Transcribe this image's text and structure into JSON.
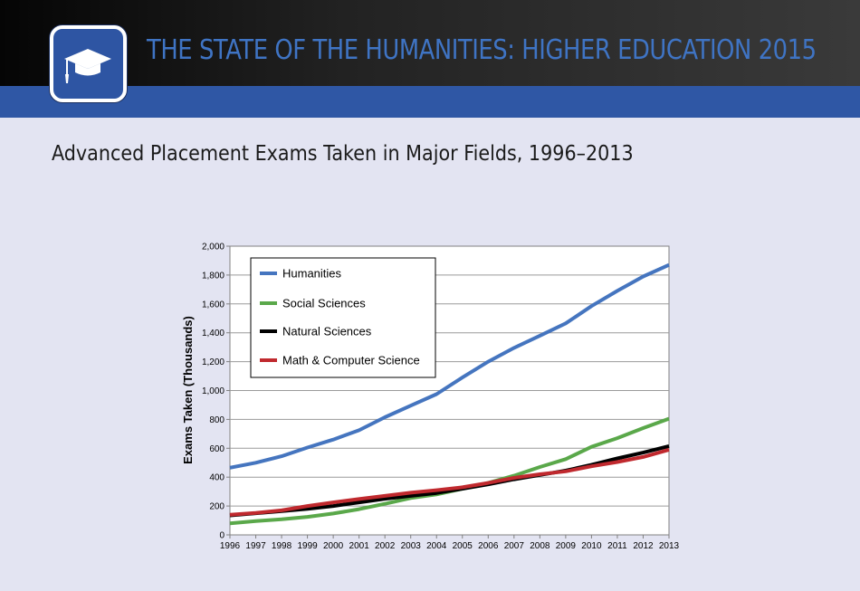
{
  "header": {
    "title": "THE STATE OF THE HUMANITIES: HIGHER EDUCATION 2015",
    "icon": "graduation-cap-icon"
  },
  "subtitle": "Advanced Placement Exams Taken in Major Fields, 1996–2013",
  "colors": {
    "header_dark": "#0a0a0a",
    "header_band": "#2f57a5",
    "title": "#3f74c4",
    "background": "#e3e4f2"
  },
  "chart_data": {
    "type": "line",
    "title": "",
    "xlabel": "",
    "ylabel": "Exams Taken (Thousands)",
    "x": [
      "1996",
      "1997",
      "1998",
      "1999",
      "2000",
      "2001",
      "2002",
      "2003",
      "2004",
      "2005",
      "2006",
      "2007",
      "2008",
      "2009",
      "2010",
      "2011",
      "2012",
      "2013"
    ],
    "ylim": [
      0,
      2000
    ],
    "yticks": [
      0,
      200,
      400,
      600,
      800,
      1000,
      1200,
      1400,
      1600,
      1800,
      2000
    ],
    "ytick_labels": [
      "0",
      "200",
      "400",
      "600",
      "800",
      "1,000",
      "1,200",
      "1,400",
      "1,600",
      "1,800",
      "2,000"
    ],
    "grid": true,
    "legend_position": "top-left",
    "series": [
      {
        "name": "Humanities",
        "color": "#4575bf",
        "values": [
          465,
          500,
          545,
          605,
          660,
          725,
          815,
          895,
          975,
          1090,
          1200,
          1295,
          1380,
          1465,
          1585,
          1690,
          1790,
          1870
        ]
      },
      {
        "name": "Social Sciences",
        "color": "#5aa84a",
        "values": [
          80,
          95,
          108,
          125,
          148,
          178,
          215,
          255,
          280,
          320,
          360,
          410,
          470,
          525,
          610,
          670,
          740,
          805
        ]
      },
      {
        "name": "Natural Sciences",
        "color": "#000000",
        "values": [
          135,
          150,
          165,
          180,
          200,
          225,
          250,
          270,
          290,
          320,
          350,
          385,
          415,
          445,
          485,
          530,
          570,
          615
        ]
      },
      {
        "name": "Math & Computer Science",
        "color": "#c0292e",
        "values": [
          140,
          152,
          170,
          200,
          225,
          248,
          270,
          292,
          310,
          330,
          360,
          395,
          420,
          440,
          475,
          505,
          540,
          590
        ]
      }
    ]
  }
}
